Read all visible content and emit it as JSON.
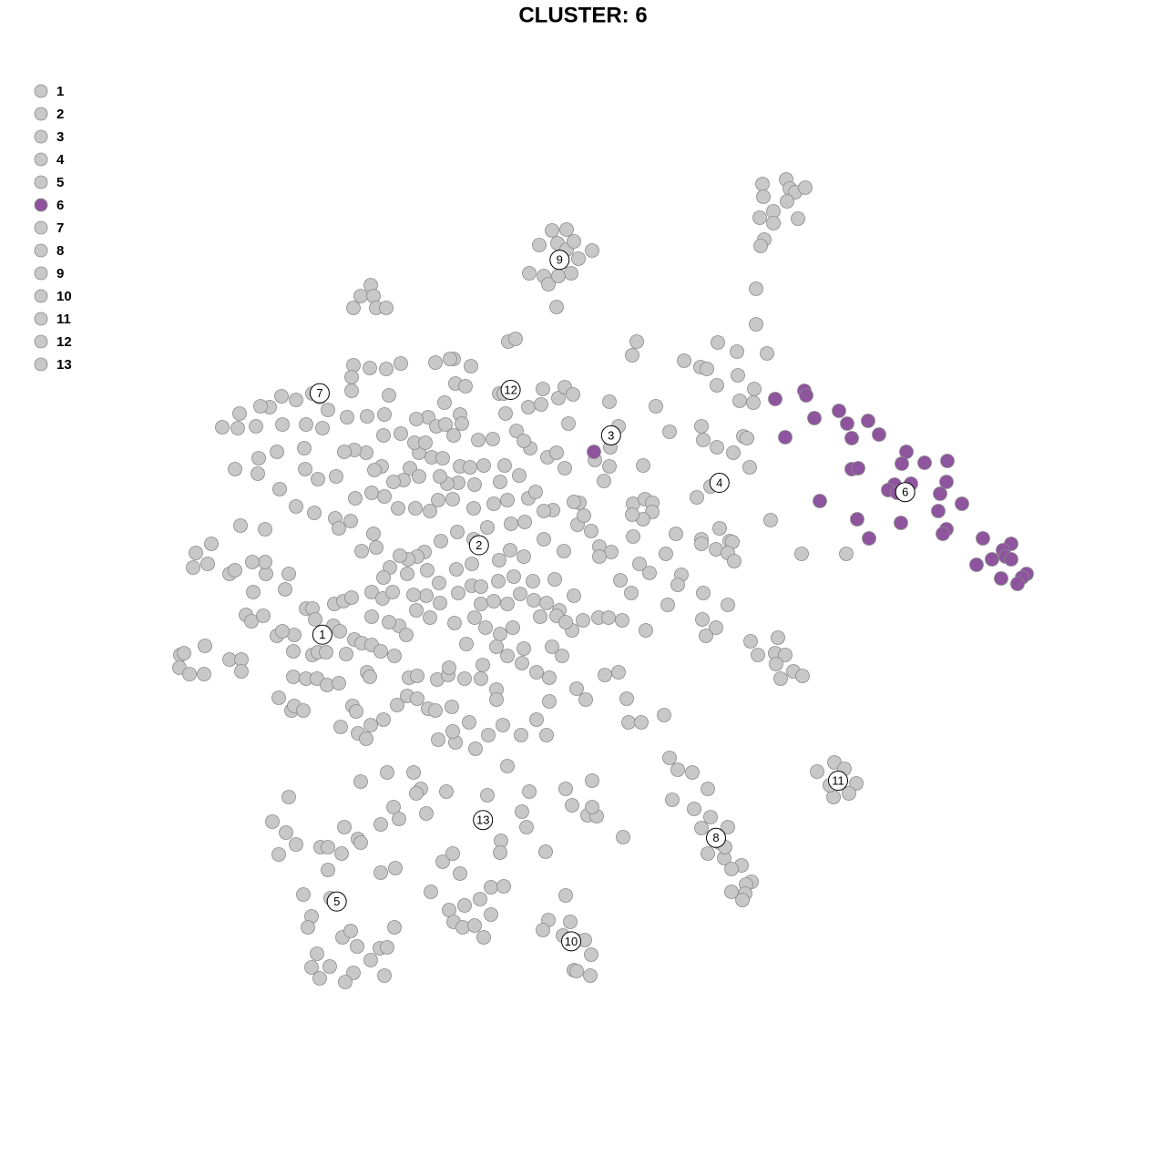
{
  "chart_data": {
    "type": "scatter",
    "title": "CLUSTER: 6",
    "legend": "top-left",
    "xlim": [
      190,
      1140
    ],
    "ylim": [
      1090,
      180
    ],
    "series": [
      {
        "name": "1",
        "color": "#c8c8c8",
        "x": [
          215,
          232,
          212,
          228,
          252,
          258,
          278,
          270,
          276,
          289,
          198,
          202,
          197,
          208,
          224,
          225,
          252,
          265,
          265,
          304,
          323,
          310,
          322,
          343,
          349,
          358,
          380,
          389,
          397,
          408,
          433,
          418,
          322,
          336,
          348,
          359,
          372,
          403,
          406,
          306,
          320,
          323,
          333,
          387,
          391,
          374,
          393,
          402,
          407,
          421,
          436,
          447,
          458,
          449,
          458,
          480,
          492,
          493,
          510,
          470,
          478,
          496,
          408,
          313,
          336,
          343,
          346,
          366,
          373,
          367,
          377,
          386,
          408,
          420,
          431,
          438,
          427,
          446,
          457,
          472,
          292,
          317,
          291,
          277,
          264,
          291,
          307,
          325,
          345,
          368,
          372,
          385,
          410
        ],
        "y": [
          607,
          597,
          623,
          619,
          630,
          626,
          650,
          675,
          682,
          676,
          719,
          717,
          733,
          740,
          740,
          709,
          724,
          724,
          737,
          698,
          697,
          693,
          715,
          719,
          716,
          716,
          718,
          702,
          706,
          708,
          720,
          715,
          743,
          745,
          745,
          752,
          750,
          738,
          743,
          766,
          780,
          775,
          780,
          775,
          781,
          798,
          805,
          811,
          796,
          790,
          774,
          764,
          767,
          744,
          742,
          746,
          741,
          733,
          745,
          778,
          780,
          776,
          677,
          647,
          668,
          668,
          680,
          687,
          693,
          663,
          660,
          656,
          650,
          657,
          650,
          687,
          683,
          697,
          670,
          678,
          630,
          630,
          617,
          617,
          577,
          581,
          537,
          556,
          563,
          569,
          580,
          572,
          586
        ]
      },
      {
        "name": "2",
        "color": "#c8c8c8",
        "x": [
          470,
          457,
          479,
          489,
          505,
          507,
          498,
          525,
          541,
          505,
          516,
          531,
          503,
          521,
          497,
          520,
          542,
          557,
          580,
          588,
          576,
          561,
          535,
          520,
          502,
          484,
          466,
          458,
          448,
          428,
          421,
          397,
          413,
          439,
          469,
          501,
          518,
          548,
          560,
          575,
          597,
          619,
          634,
          649,
          658,
          671,
          658,
          636,
          630,
          641,
          607,
          597,
          582,
          570,
          554,
          549,
          460,
          450,
          443,
          432,
          419,
          411,
          402,
          389,
          378,
          369,
          349,
          335,
          390,
          408,
          422,
          437,
          456,
          472,
          481,
          491,
          483,
          460,
          474,
          486,
          440,
          421,
          455,
          467,
          528,
          542,
          557,
          586,
          600,
          614,
          630,
          640,
          628,
          657,
          668,
          683,
          533,
          549,
          563,
          593,
          611,
          621,
          521,
          499,
          512,
          530,
          545,
          557,
          575,
          573,
          589,
          603,
          606,
          617,
          633,
          643,
          603,
          589,
          545,
          545,
          528,
          503,
          518,
          528,
          547,
          564,
          585,
          609,
          571,
          482,
          468,
          454,
          447,
          483
        ],
        "y": [
          458,
          460,
          468,
          466,
          455,
          465,
          478,
          483,
          482,
          512,
          513,
          511,
          530,
          532,
          548,
          558,
          553,
          549,
          547,
          540,
          573,
          575,
          579,
          592,
          584,
          594,
          606,
          611,
          614,
          623,
          634,
          605,
          601,
          610,
          626,
          625,
          619,
          615,
          604,
          611,
          592,
          605,
          576,
          583,
          600,
          606,
          611,
          552,
          551,
          566,
          560,
          561,
          492,
          522,
          511,
          529,
          497,
          514,
          527,
          529,
          512,
          516,
          497,
          494,
          496,
          523,
          526,
          515,
          547,
          541,
          545,
          558,
          558,
          561,
          549,
          531,
          523,
          523,
          502,
          503,
          476,
          478,
          486,
          486,
          663,
          660,
          663,
          659,
          662,
          670,
          654,
          681,
          692,
          678,
          678,
          681,
          689,
          696,
          689,
          677,
          676,
          683,
          678,
          684,
          707,
          730,
          710,
          720,
          712,
          728,
          738,
          744,
          710,
          720,
          756,
          768,
          770,
          790,
          757,
          768,
          745,
          651,
          643,
          644,
          638,
          633,
          638,
          636,
          652,
          640,
          654,
          653,
          630,
          662
        ]
      },
      {
        "name": "3",
        "color": "#c8c8c8",
        "x": [
          699,
          694,
          720,
          679,
          670,
          735,
          706,
          663,
          653,
          601,
          611,
          620,
          669
        ],
        "y": [
          375,
          390,
          446,
          468,
          491,
          474,
          511,
          528,
          505,
          502,
          497,
          514,
          512
        ]
      },
      {
        "name": "4",
        "color": "#c8c8c8",
        "x": [
          751,
          769,
          788,
          809,
          842,
          830,
          830,
          810,
          787,
          812,
          827,
          828,
          770,
          772,
          787,
          805,
          816,
          820,
          823,
          780,
          765,
          695,
          708,
          716,
          716,
          706,
          694,
          742,
          770,
          770,
          790,
          801,
          804,
          786,
          799,
          806,
          748,
          744,
          713,
          731,
          702,
          681,
          693,
          733,
          772,
          799,
          771,
          786,
          775,
          709,
          729,
          688,
          690,
          704,
          664,
          679,
          824,
          832,
          854,
          851,
          862,
          852,
          871,
          881,
          857,
          846,
          880,
          929,
          695,
          776,
          837,
          863,
          867,
          873,
          884,
          838,
          864,
          834,
          849,
          849,
          876,
          839,
          835
        ],
        "y": [
          396,
          403,
          376,
          386,
          388,
          356,
          317,
          412,
          423,
          440,
          442,
          427,
          468,
          483,
          491,
          497,
          479,
          481,
          513,
          534,
          546,
          553,
          548,
          552,
          562,
          570,
          565,
          586,
          592,
          597,
          580,
          594,
          595,
          603,
          607,
          616,
          631,
          642,
          629,
          608,
          619,
          637,
          651,
          664,
          651,
          664,
          680,
          689,
          698,
          692,
          785,
          767,
          793,
          793,
          741,
          738,
          704,
          719,
          700,
          717,
          719,
          729,
          737,
          742,
          745,
          571,
          608,
          608,
          589,
          405,
          202,
          197,
          207,
          211,
          206,
          216,
          221,
          239,
          232,
          245,
          240,
          263,
          270
        ]
      },
      {
        "name": "5",
        "color": "#c8c8c8",
        "x": [
          317,
          299,
          314,
          325,
          306,
          352,
          360,
          375,
          393,
          378,
          396,
          333,
          363,
          342,
          338,
          348,
          376,
          385,
          392,
          407,
          417,
          425,
          433,
          422,
          388,
          379,
          351,
          342,
          362,
          418,
          434,
          360
        ],
        "y": [
          875,
          902,
          914,
          927,
          938,
          930,
          930,
          937,
          921,
          908,
          925,
          982,
          986,
          1006,
          1018,
          1047,
          1029,
          1022,
          1039,
          1054,
          1041,
          1040,
          1018,
          1071,
          1068,
          1078,
          1074,
          1062,
          1061,
          958,
          953,
          955
        ]
      },
      {
        "name": "6",
        "color": "#8e559e",
        "x": [
          851,
          883,
          885,
          894,
          921,
          930,
          953,
          965,
          935,
          862,
          995,
          990,
          1015,
          1040,
          935,
          942,
          982,
          1000,
          1039,
          975,
          985,
          1032,
          1056,
          900,
          941,
          989,
          1030,
          1039,
          1035,
          954,
          1079,
          1110,
          1101,
          1089,
          1104,
          1110,
          1072,
          1127,
          1122,
          1099,
          1117,
          652
        ],
        "y": [
          438,
          429,
          434,
          459,
          451,
          465,
          462,
          477,
          481,
          480,
          496,
          509,
          508,
          506,
          515,
          514,
          532,
          531,
          529,
          538,
          541,
          542,
          553,
          550,
          570,
          574,
          561,
          581,
          586,
          591,
          591,
          597,
          604,
          614,
          611,
          614,
          620,
          630,
          634,
          635,
          641,
          496
        ]
      },
      {
        "name": "7",
        "color": "#c8c8c8",
        "x": [
          388,
          396,
          407,
          410,
          413,
          424,
          388,
          406,
          424,
          440,
          386,
          386,
          360,
          343,
          325,
          309,
          296,
          286,
          263,
          244,
          261,
          281,
          310,
          336,
          354,
          381,
          403,
          422,
          427,
          351,
          334,
          304,
          284,
          283,
          258
        ],
        "y": [
          338,
          325,
          313,
          325,
          338,
          338,
          401,
          404,
          405,
          399,
          414,
          429,
          450,
          432,
          439,
          435,
          447,
          446,
          454,
          469,
          470,
          468,
          466,
          466,
          470,
          458,
          457,
          455,
          434,
          436,
          492,
          496,
          503,
          520,
          515
        ]
      },
      {
        "name": "8",
        "color": "#c8c8c8",
        "x": [
          735,
          744,
          760,
          777,
          738,
          770,
          799,
          777,
          790,
          795,
          814,
          803,
          825,
          819,
          803,
          818,
          815,
          780,
          796,
          762
        ],
        "y": [
          832,
          845,
          848,
          866,
          878,
          909,
          908,
          937,
          925,
          942,
          950,
          954,
          968,
          971,
          979,
          981,
          988,
          897,
          930,
          888
        ]
      },
      {
        "name": "9",
        "color": "#c8c8c8",
        "x": [
          606,
          622,
          592,
          612,
          622,
          630,
          650,
          635,
          581,
          597,
          627,
          602,
          611,
          613
        ],
        "y": [
          253,
          252,
          269,
          267,
          274,
          265,
          275,
          284,
          300,
          303,
          300,
          312,
          337,
          303
        ]
      },
      {
        "name": "10",
        "color": "#c8c8c8",
        "x": [
          621,
          602,
          626,
          596,
          618,
          632,
          642,
          649,
          630,
          648,
          633
        ],
        "y": [
          983,
          1010,
          1012,
          1021,
          1027,
          1032,
          1032,
          1048,
          1065,
          1071,
          1066
        ]
      },
      {
        "name": "11",
        "color": "#c8c8c8",
        "x": [
          897,
          916,
          927,
          940,
          932,
          915,
          911,
          922
        ],
        "y": [
          847,
          837,
          844,
          860,
          871,
          875,
          862,
          860
        ]
      },
      {
        "name": "12",
        "color": "#c8c8c8",
        "x": [
          498,
          517,
          478,
          494,
          500,
          511,
          488,
          548,
          553,
          580,
          596,
          594,
          613,
          620,
          629,
          624,
          567,
          558,
          566,
          575,
          555,
          669
        ],
        "y": [
          394,
          402,
          398,
          394,
          421,
          424,
          442,
          432,
          432,
          447,
          427,
          444,
          437,
          425,
          433,
          465,
          473,
          375,
          372,
          484,
          454,
          441
        ]
      },
      {
        "name": "13",
        "color": "#c8c8c8",
        "x": [
          396,
          425,
          454,
          462,
          457,
          490,
          432,
          418,
          438,
          468,
          535,
          557,
          581,
          573,
          578,
          550,
          549,
          486,
          497,
          505,
          473,
          527,
          539,
          553,
          510,
          493,
          498,
          508,
          521,
          531,
          539,
          599,
          621,
          628,
          650,
          645,
          655,
          650,
          684,
          536,
          522,
          500,
          481,
          552,
          515,
          497,
          572,
          600
        ],
        "y": [
          858,
          848,
          848,
          866,
          871,
          869,
          886,
          905,
          899,
          893,
          873,
          841,
          869,
          891,
          908,
          923,
          936,
          946,
          937,
          959,
          979,
          987,
          974,
          973,
          994,
          999,
          1012,
          1018,
          1016,
          1029,
          1004,
          935,
          866,
          884,
          857,
          895,
          896,
          886,
          919,
          807,
          822,
          815,
          812,
          796,
          793,
          803,
          807,
          807
        ]
      }
    ]
  }
}
